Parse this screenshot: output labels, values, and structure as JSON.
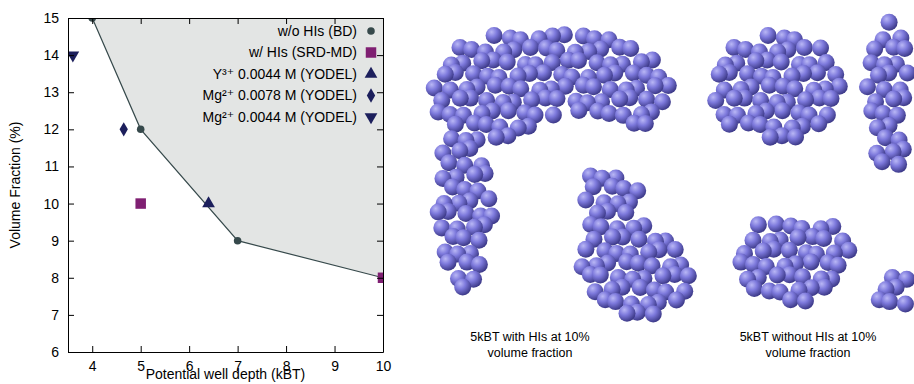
{
  "chart_data": {
    "type": "scatter",
    "x_label": "Potential well depth (kBT)",
    "y_label": "Volume Fraction (%)",
    "xlim": [
      3.5,
      10
    ],
    "xticks": [
      4,
      5,
      6,
      7,
      8,
      9,
      10
    ],
    "ylim": [
      6,
      15
    ],
    "yticks": [
      6,
      7,
      8,
      9,
      10,
      11,
      12,
      13,
      14,
      15
    ],
    "legend": "top-right",
    "series": [
      {
        "name": "w/o HIs (BD)",
        "type": "line",
        "marker": "circle",
        "color": "#36494b",
        "x": [
          4,
          5,
          7,
          10
        ],
        "values": [
          15,
          12,
          9,
          8
        ]
      },
      {
        "name": "w/ HIs (SRD-MD)",
        "type": "scatter",
        "marker": "square",
        "color": "#7f1f72",
        "x": [
          5,
          10
        ],
        "values": [
          10,
          8
        ]
      },
      {
        "name": "Y³⁺ 0.0044 M (YODEL)",
        "type": "scatter",
        "marker": "triangle-up",
        "color": "#1c1f5c",
        "x": [
          6.4
        ],
        "values": [
          10
        ]
      },
      {
        "name": "Mg²⁺ 0.0078 M (YODEL)",
        "type": "scatter",
        "marker": "diamond",
        "color": "#1c1f5c",
        "x": [
          4.65
        ],
        "values": [
          12
        ]
      },
      {
        "name": "Mg²⁺ 0.0044 M (YODEL)",
        "type": "scatter",
        "marker": "triangle-down",
        "color": "#1c1f5c",
        "x": [
          3.6
        ],
        "values": [
          14
        ]
      }
    ]
  },
  "panels": [
    {
      "caption": [
        "5kBT with HIs at 10%",
        "volume fraction"
      ]
    },
    {
      "caption": [
        "5kBT without HIs at 10%",
        "volume fraction"
      ]
    }
  ]
}
